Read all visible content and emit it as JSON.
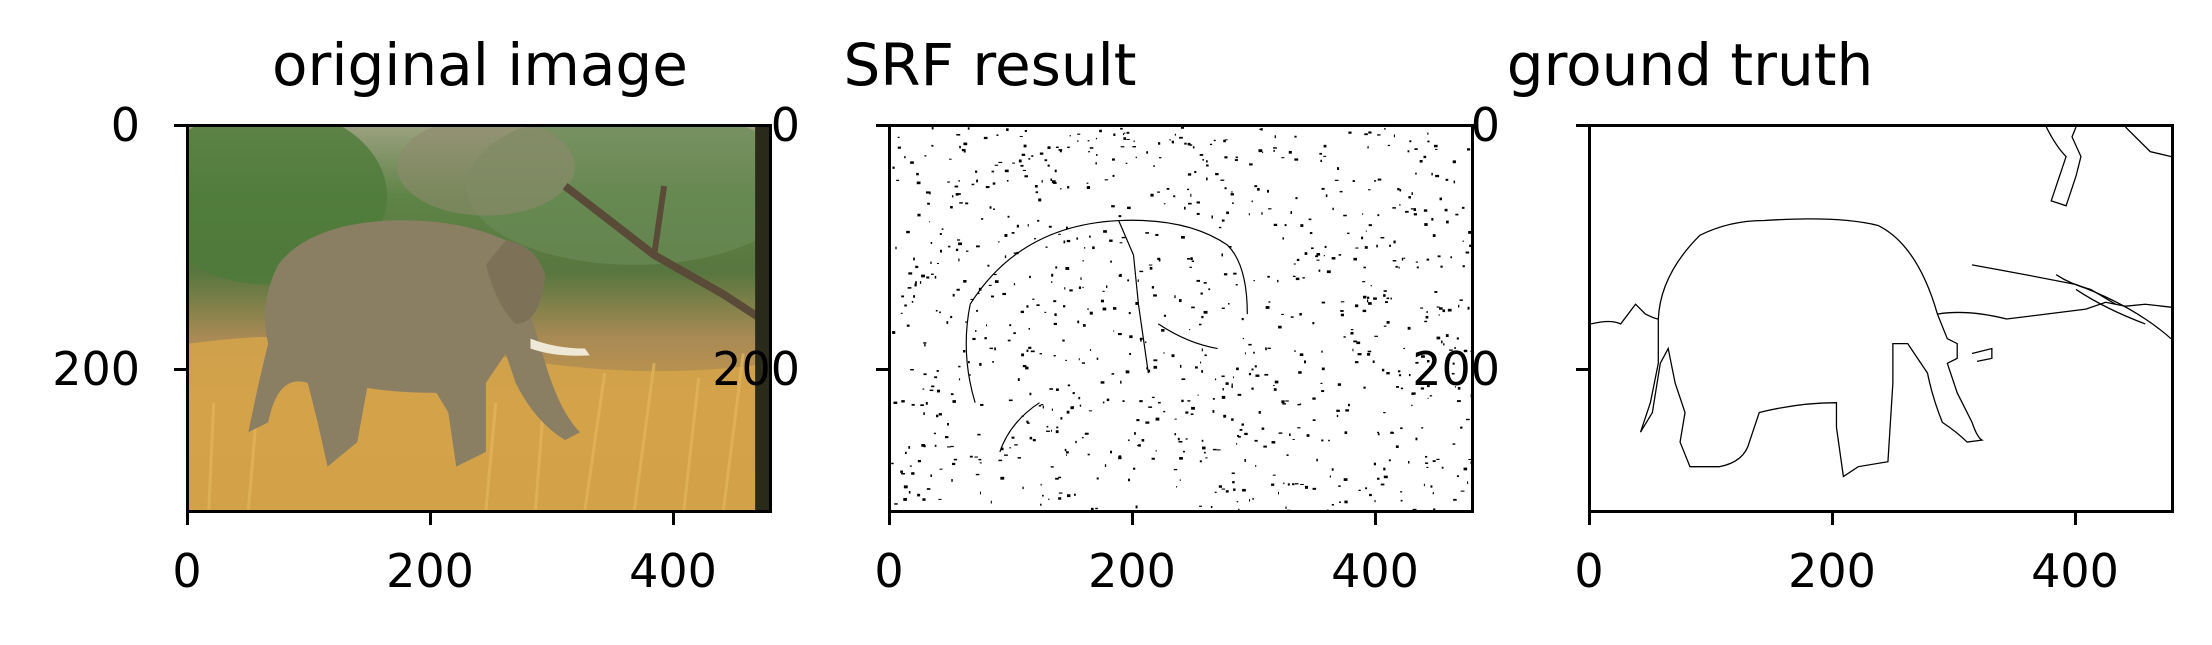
{
  "panels": [
    {
      "title": "original image",
      "x_ticks": [
        "0",
        "200",
        "400"
      ],
      "y_ticks": [
        "0",
        "200"
      ],
      "content": "photo"
    },
    {
      "title": "SRF result",
      "x_ticks": [
        "0",
        "200",
        "400"
      ],
      "y_ticks": [
        "0",
        "200"
      ],
      "content": "edge-map"
    },
    {
      "title": "ground truth",
      "x_ticks": [
        "0",
        "200",
        "400"
      ],
      "y_ticks": [
        "0",
        "200"
      ],
      "content": "contour"
    }
  ],
  "colors": {
    "sky": "#8e9aa8",
    "foliage": "#4f7a3e",
    "grass": "#d4a24a",
    "dry_grass": "#b8873a",
    "elephant": "#8a7f63",
    "tusk": "#efe8d6"
  }
}
